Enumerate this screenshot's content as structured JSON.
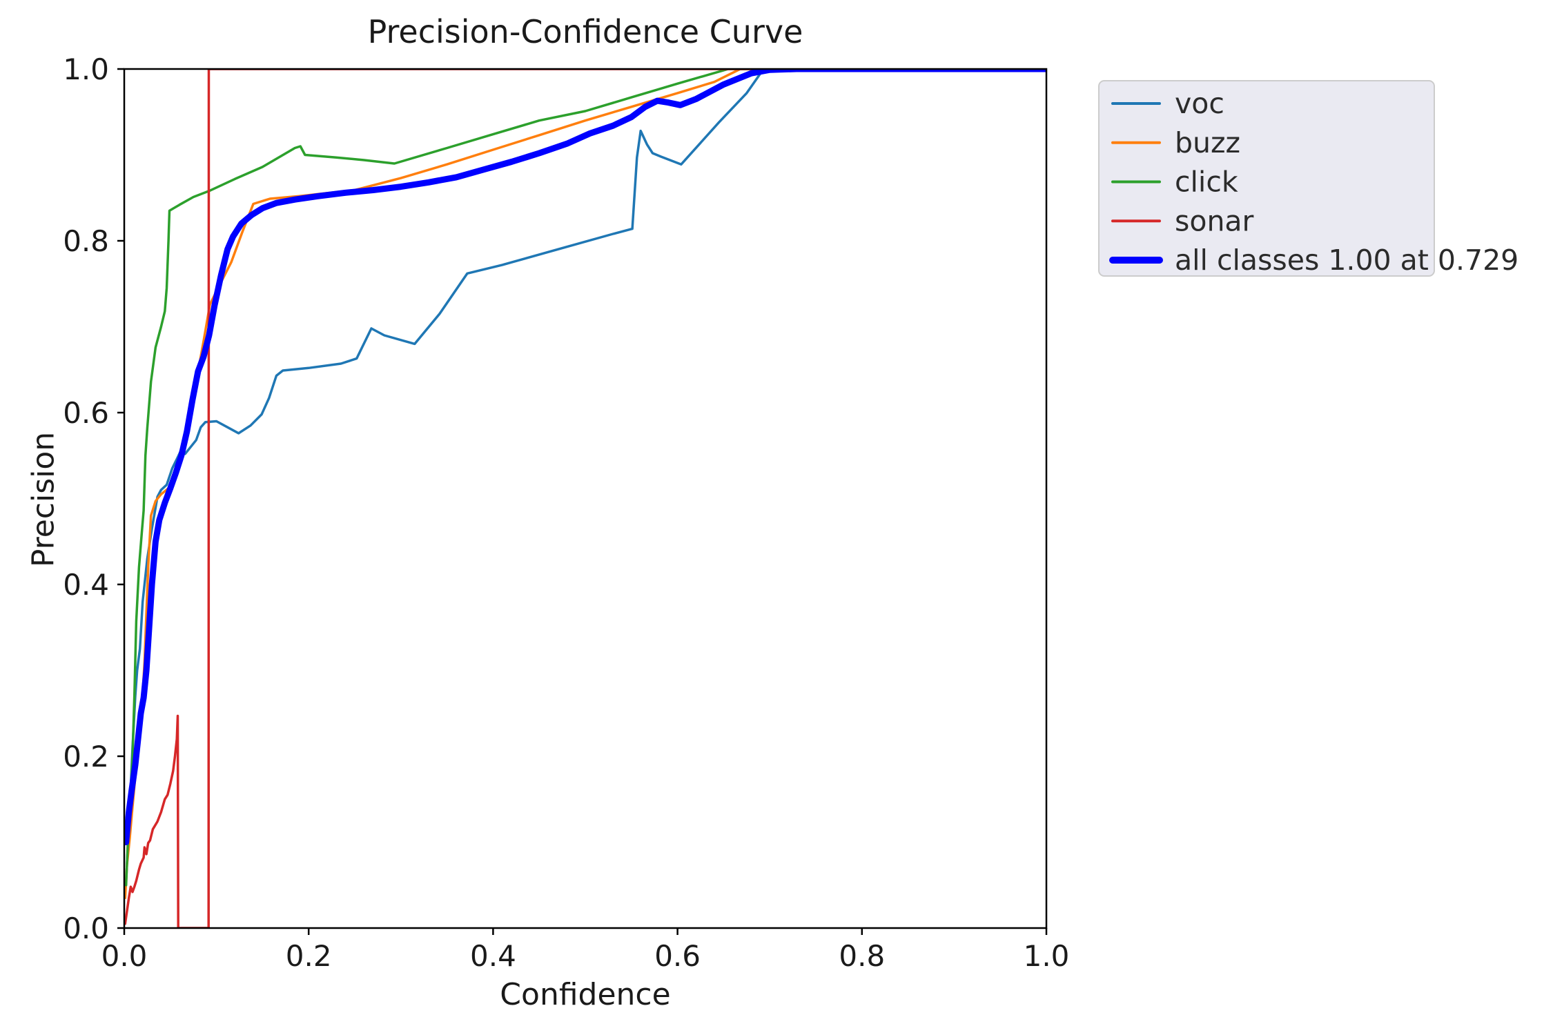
{
  "figure": {
    "background": "#ffffff",
    "spine_color": "#000000",
    "text_color": "#1a1a1a"
  },
  "chart_data": {
    "type": "line",
    "title": "Precision-Confidence Curve",
    "xlabel": "Confidence",
    "ylabel": "Precision",
    "xlim": [
      0.0,
      1.0
    ],
    "ylim": [
      0.0,
      1.0
    ],
    "xticks": [
      "0.0",
      "0.2",
      "0.4",
      "0.6",
      "0.8",
      "1.0"
    ],
    "yticks": [
      "0.0",
      "0.2",
      "0.4",
      "0.6",
      "0.8",
      "1.0"
    ],
    "grid": false,
    "legend_position": "outside-upper-right",
    "series": [
      {
        "name": "voc",
        "color": "#1f77b4",
        "width": 3.5,
        "points": [
          [
            0.003,
            0.075
          ],
          [
            0.006,
            0.14
          ],
          [
            0.009,
            0.21
          ],
          [
            0.012,
            0.27
          ],
          [
            0.014,
            0.3
          ],
          [
            0.017,
            0.325
          ],
          [
            0.02,
            0.38
          ],
          [
            0.025,
            0.43
          ],
          [
            0.03,
            0.465
          ],
          [
            0.036,
            0.502
          ],
          [
            0.04,
            0.51
          ],
          [
            0.046,
            0.516
          ],
          [
            0.052,
            0.535
          ],
          [
            0.058,
            0.548
          ],
          [
            0.062,
            0.557
          ],
          [
            0.066,
            0.552
          ],
          [
            0.072,
            0.56
          ],
          [
            0.078,
            0.568
          ],
          [
            0.083,
            0.583
          ],
          [
            0.088,
            0.589
          ],
          [
            0.1,
            0.59
          ],
          [
            0.112,
            0.583
          ],
          [
            0.124,
            0.576
          ],
          [
            0.137,
            0.585
          ],
          [
            0.149,
            0.598
          ],
          [
            0.157,
            0.617
          ],
          [
            0.165,
            0.643
          ],
          [
            0.172,
            0.649
          ],
          [
            0.2,
            0.652
          ],
          [
            0.235,
            0.657
          ],
          [
            0.252,
            0.663
          ],
          [
            0.268,
            0.698
          ],
          [
            0.282,
            0.69
          ],
          [
            0.315,
            0.68
          ],
          [
            0.342,
            0.715
          ],
          [
            0.372,
            0.762
          ],
          [
            0.41,
            0.772
          ],
          [
            0.47,
            0.79
          ],
          [
            0.53,
            0.808
          ],
          [
            0.551,
            0.814
          ],
          [
            0.556,
            0.897
          ],
          [
            0.56,
            0.928
          ],
          [
            0.567,
            0.912
          ],
          [
            0.573,
            0.902
          ],
          [
            0.582,
            0.898
          ],
          [
            0.604,
            0.889
          ],
          [
            0.645,
            0.938
          ],
          [
            0.675,
            0.972
          ],
          [
            0.692,
            0.998
          ],
          [
            0.71,
            1.0
          ],
          [
            1.0,
            1.0
          ]
        ]
      },
      {
        "name": "buzz",
        "color": "#ff7f0e",
        "width": 3.5,
        "points": [
          [
            0.001,
            0.035
          ],
          [
            0.003,
            0.074
          ],
          [
            0.006,
            0.105
          ],
          [
            0.008,
            0.13
          ],
          [
            0.011,
            0.165
          ],
          [
            0.014,
            0.197
          ],
          [
            0.018,
            0.235
          ],
          [
            0.022,
            0.31
          ],
          [
            0.026,
            0.42
          ],
          [
            0.029,
            0.48
          ],
          [
            0.034,
            0.497
          ],
          [
            0.04,
            0.505
          ],
          [
            0.048,
            0.512
          ],
          [
            0.055,
            0.528
          ],
          [
            0.063,
            0.552
          ],
          [
            0.07,
            0.592
          ],
          [
            0.078,
            0.636
          ],
          [
            0.086,
            0.683
          ],
          [
            0.093,
            0.726
          ],
          [
            0.105,
            0.752
          ],
          [
            0.116,
            0.775
          ],
          [
            0.128,
            0.81
          ],
          [
            0.14,
            0.843
          ],
          [
            0.158,
            0.849
          ],
          [
            0.19,
            0.852
          ],
          [
            0.25,
            0.859
          ],
          [
            0.3,
            0.873
          ],
          [
            0.35,
            0.889
          ],
          [
            0.4,
            0.906
          ],
          [
            0.45,
            0.923
          ],
          [
            0.5,
            0.94
          ],
          [
            0.55,
            0.956
          ],
          [
            0.6,
            0.972
          ],
          [
            0.64,
            0.985
          ],
          [
            0.668,
            1.0
          ],
          [
            1.0,
            1.0
          ]
        ]
      },
      {
        "name": "click",
        "color": "#2ca02c",
        "width": 3.5,
        "points": [
          [
            0.002,
            0.05
          ],
          [
            0.004,
            0.1
          ],
          [
            0.006,
            0.13
          ],
          [
            0.009,
            0.2
          ],
          [
            0.011,
            0.27
          ],
          [
            0.013,
            0.357
          ],
          [
            0.016,
            0.42
          ],
          [
            0.019,
            0.46
          ],
          [
            0.021,
            0.486
          ],
          [
            0.023,
            0.55
          ],
          [
            0.025,
            0.582
          ],
          [
            0.029,
            0.636
          ],
          [
            0.034,
            0.676
          ],
          [
            0.04,
            0.7
          ],
          [
            0.044,
            0.718
          ],
          [
            0.046,
            0.745
          ],
          [
            0.048,
            0.8
          ],
          [
            0.049,
            0.835
          ],
          [
            0.06,
            0.842
          ],
          [
            0.075,
            0.851
          ],
          [
            0.092,
            0.858
          ],
          [
            0.12,
            0.872
          ],
          [
            0.15,
            0.886
          ],
          [
            0.185,
            0.908
          ],
          [
            0.191,
            0.91
          ],
          [
            0.196,
            0.9
          ],
          [
            0.23,
            0.897
          ],
          [
            0.26,
            0.894
          ],
          [
            0.293,
            0.89
          ],
          [
            0.35,
            0.908
          ],
          [
            0.4,
            0.924
          ],
          [
            0.45,
            0.94
          ],
          [
            0.5,
            0.951
          ],
          [
            0.55,
            0.967
          ],
          [
            0.6,
            0.983
          ],
          [
            0.655,
            1.0
          ],
          [
            1.0,
            1.0
          ]
        ]
      },
      {
        "name": "sonar",
        "color": "#d62728",
        "width": 3.5,
        "points": [
          [
            0.001,
            0.005
          ],
          [
            0.003,
            0.02
          ],
          [
            0.005,
            0.035
          ],
          [
            0.007,
            0.048
          ],
          [
            0.009,
            0.042
          ],
          [
            0.011,
            0.048
          ],
          [
            0.013,
            0.055
          ],
          [
            0.016,
            0.068
          ],
          [
            0.018,
            0.075
          ],
          [
            0.021,
            0.082
          ],
          [
            0.022,
            0.094
          ],
          [
            0.024,
            0.086
          ],
          [
            0.026,
            0.099
          ],
          [
            0.028,
            0.102
          ],
          [
            0.031,
            0.115
          ],
          [
            0.036,
            0.124
          ],
          [
            0.04,
            0.135
          ],
          [
            0.044,
            0.15
          ],
          [
            0.047,
            0.155
          ],
          [
            0.05,
            0.168
          ],
          [
            0.053,
            0.183
          ],
          [
            0.055,
            0.2
          ],
          [
            0.057,
            0.22
          ],
          [
            0.058,
            0.247
          ],
          [
            0.0585,
            0.0
          ],
          [
            0.0915,
            0.0
          ],
          [
            0.0917,
            1.0
          ],
          [
            1.0,
            1.0
          ]
        ]
      },
      {
        "name": "all classes 1.00 at 0.729",
        "color": "#0000ff",
        "width": 9,
        "points": [
          [
            0.002,
            0.1
          ],
          [
            0.005,
            0.135
          ],
          [
            0.008,
            0.16
          ],
          [
            0.012,
            0.19
          ],
          [
            0.015,
            0.22
          ],
          [
            0.018,
            0.25
          ],
          [
            0.021,
            0.268
          ],
          [
            0.024,
            0.3
          ],
          [
            0.027,
            0.35
          ],
          [
            0.03,
            0.4
          ],
          [
            0.034,
            0.45
          ],
          [
            0.038,
            0.475
          ],
          [
            0.044,
            0.495
          ],
          [
            0.05,
            0.512
          ],
          [
            0.056,
            0.53
          ],
          [
            0.062,
            0.55
          ],
          [
            0.068,
            0.578
          ],
          [
            0.074,
            0.615
          ],
          [
            0.08,
            0.648
          ],
          [
            0.086,
            0.665
          ],
          [
            0.092,
            0.69
          ],
          [
            0.098,
            0.725
          ],
          [
            0.105,
            0.76
          ],
          [
            0.112,
            0.79
          ],
          [
            0.118,
            0.805
          ],
          [
            0.127,
            0.82
          ],
          [
            0.138,
            0.83
          ],
          [
            0.15,
            0.838
          ],
          [
            0.165,
            0.844
          ],
          [
            0.185,
            0.848
          ],
          [
            0.21,
            0.852
          ],
          [
            0.24,
            0.856
          ],
          [
            0.27,
            0.859
          ],
          [
            0.3,
            0.863
          ],
          [
            0.33,
            0.868
          ],
          [
            0.36,
            0.874
          ],
          [
            0.39,
            0.883
          ],
          [
            0.42,
            0.892
          ],
          [
            0.45,
            0.902
          ],
          [
            0.48,
            0.913
          ],
          [
            0.505,
            0.925
          ],
          [
            0.53,
            0.934
          ],
          [
            0.55,
            0.944
          ],
          [
            0.565,
            0.956
          ],
          [
            0.578,
            0.963
          ],
          [
            0.59,
            0.961
          ],
          [
            0.603,
            0.958
          ],
          [
            0.62,
            0.965
          ],
          [
            0.65,
            0.982
          ],
          [
            0.68,
            0.995
          ],
          [
            0.7,
            0.999
          ],
          [
            0.729,
            1.0
          ],
          [
            1.0,
            1.0
          ]
        ]
      }
    ]
  },
  "legend": {
    "background": "#eaeaf2",
    "border_color": "#cccccc",
    "items": [
      {
        "label": "voc",
        "color": "#1f77b4",
        "sample_width": 4
      },
      {
        "label": "buzz",
        "color": "#ff7f0e",
        "sample_width": 4
      },
      {
        "label": "click",
        "color": "#2ca02c",
        "sample_width": 4
      },
      {
        "label": "sonar",
        "color": "#d62728",
        "sample_width": 4
      },
      {
        "label": "all classes 1.00 at 0.729",
        "color": "#0000ff",
        "sample_width": 10
      }
    ]
  }
}
